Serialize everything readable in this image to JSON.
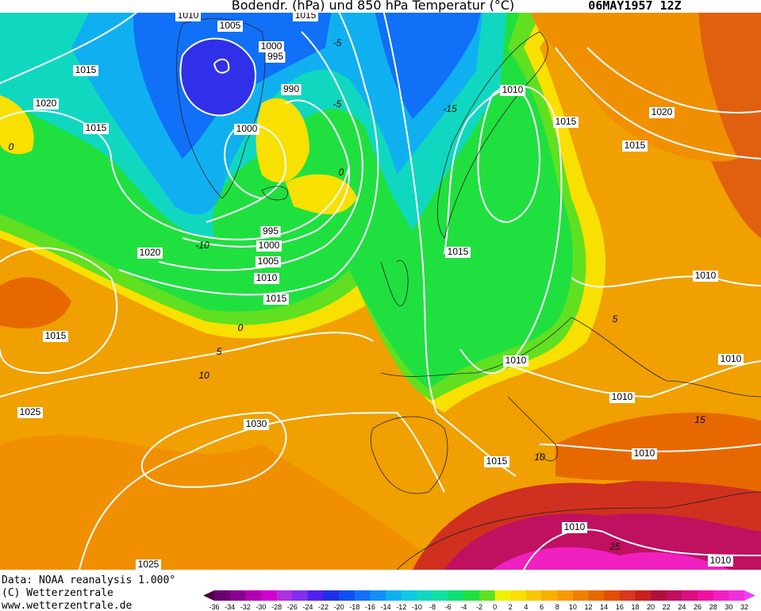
{
  "header": {
    "title": "Bodendr. (hPa) und 850 hPa Temperatur (°C)",
    "date": "06MAY1957 12Z"
  },
  "footer": [
    "Data: NOAA reanalysis 1.000°",
    "(C) Wetterzentrale",
    "www.wetterzentrale.de"
  ],
  "isobar_labels": [
    "1010",
    "1015",
    "1015",
    "1020",
    "1015",
    "1005",
    "1000",
    "995",
    "990",
    "1000",
    "995",
    "1000",
    "1005",
    "1010",
    "1015",
    "1020",
    "1015",
    "1025",
    "1030",
    "1025",
    "1010",
    "1015",
    "1020",
    "1015",
    "1015",
    "1010",
    "1010",
    "1010",
    "1010",
    "1010",
    "1015",
    "1010",
    "1010"
  ],
  "temperature_labels": [
    "0",
    "-10",
    "-5",
    "-5",
    "0",
    "5",
    "10",
    "0",
    "-15",
    "15",
    "25",
    "10",
    "5"
  ],
  "colorbar": {
    "ticks": [
      -36,
      -34,
      -32,
      -30,
      -28,
      -26,
      -24,
      -22,
      -20,
      -18,
      -16,
      -14,
      -12,
      -10,
      -8,
      -6,
      -4,
      -2,
      0,
      2,
      4,
      6,
      8,
      10,
      12,
      14,
      16,
      18,
      20,
      22,
      24,
      26,
      28,
      30,
      32
    ],
    "colors": [
      "#4b0040",
      "#6a0070",
      "#8a0090",
      "#b000b0",
      "#d000d0",
      "#b030e0",
      "#8030f0",
      "#5020f0",
      "#2030e8",
      "#1050f0",
      "#1070f8",
      "#1090f8",
      "#10b0f0",
      "#10c8e0",
      "#10d8c0",
      "#10e0a0",
      "#10e070",
      "#20e040",
      "#60e020",
      "#f0f000",
      "#f8e000",
      "#f8c800",
      "#f8b000",
      "#f89800",
      "#f08000",
      "#e86800",
      "#e05000",
      "#d83820",
      "#c82020",
      "#b01040",
      "#c01060",
      "#d81080",
      "#f010a0",
      "#f020c0",
      "#f030e0",
      "#f040f0"
    ]
  }
}
